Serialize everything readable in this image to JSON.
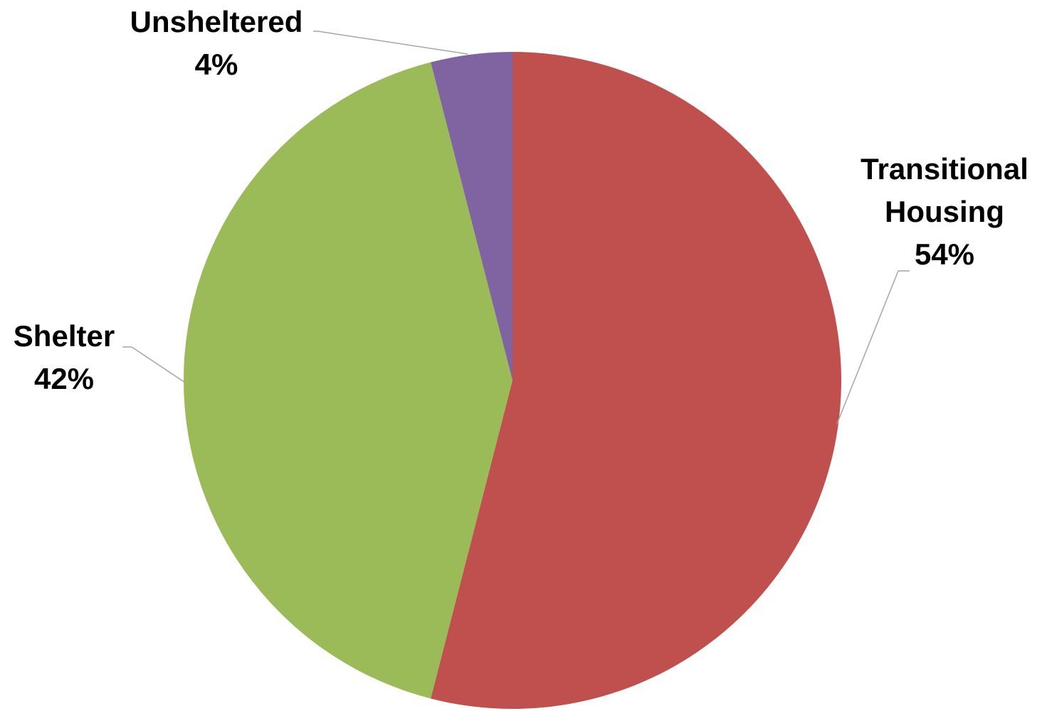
{
  "chart_data": {
    "type": "pie",
    "title": "",
    "slices": [
      {
        "label_lines": [
          "Transitional",
          "Housing"
        ],
        "percent_label": "54%",
        "value": 54,
        "color": "#C0504D"
      },
      {
        "label_lines": [
          "Shelter"
        ],
        "percent_label": "42%",
        "value": 42,
        "color": "#9BBB59"
      },
      {
        "label_lines": [
          "Unsheltered"
        ],
        "percent_label": "4%",
        "value": 4,
        "color": "#8064A2"
      }
    ],
    "start_angle_deg": 0,
    "direction": "clockwise",
    "legend": "none",
    "data_labels": "outside-with-leader-lines"
  }
}
